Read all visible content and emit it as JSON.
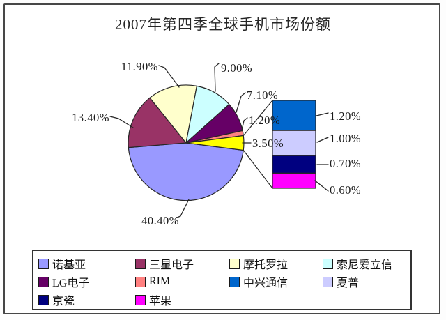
{
  "title": "2007年第四季全球手机市场份额",
  "chart_data": {
    "type": "pie",
    "subtype": "bar-of-pie",
    "title": "2007年第四季全球手机市场份额",
    "unit": "%",
    "pie": {
      "slices": [
        {
          "name": "诺基亚",
          "value": 40.4,
          "label": "40.40%",
          "color": "#9999FF"
        },
        {
          "name": "三星电子",
          "value": 13.4,
          "label": "13.40%",
          "color": "#993366"
        },
        {
          "name": "摩托罗拉",
          "value": 11.9,
          "label": "11.90%",
          "color": "#FFFFCC"
        },
        {
          "name": "索尼爱立信",
          "value": 9.0,
          "label": "9.00%",
          "color": "#CCFFFF"
        },
        {
          "name": "LG电子",
          "value": 7.1,
          "label": "7.10%",
          "color": "#660066"
        },
        {
          "name": "RIM",
          "value": 1.2,
          "label": "1.20%",
          "color": "#FF8080"
        },
        {
          "name": "",
          "value": 3.5,
          "label": "3.50%",
          "color": "#FFFF00",
          "breakout": true
        }
      ]
    },
    "bar": {
      "segments": [
        {
          "name": "中兴通信",
          "value": 1.2,
          "label": "1.20%",
          "color": "#0066CC"
        },
        {
          "name": "夏普",
          "value": 1.0,
          "label": "1.00%",
          "color": "#CCCCFF"
        },
        {
          "name": "京瓷",
          "value": 0.7,
          "label": "0.70%",
          "color": "#000080"
        },
        {
          "name": "苹果",
          "value": 0.6,
          "label": "0.60%",
          "color": "#FF00FF"
        }
      ]
    },
    "legend_position": "bottom"
  },
  "legend": {
    "items": [
      {
        "name": "诺基亚",
        "color": "#9999FF"
      },
      {
        "name": "三星电子",
        "color": "#993366"
      },
      {
        "name": "摩托罗拉",
        "color": "#FFFFCC"
      },
      {
        "name": "索尼爱立信",
        "color": "#CCFFFF"
      },
      {
        "name": "LG电子",
        "color": "#660066"
      },
      {
        "name": "RIM",
        "color": "#FF8080"
      },
      {
        "name": "中兴通信",
        "color": "#0066CC"
      },
      {
        "name": "夏普",
        "color": "#CCCCFF"
      },
      {
        "name": "京瓷",
        "color": "#000080"
      },
      {
        "name": "苹果",
        "color": "#FF00FF"
      }
    ]
  }
}
